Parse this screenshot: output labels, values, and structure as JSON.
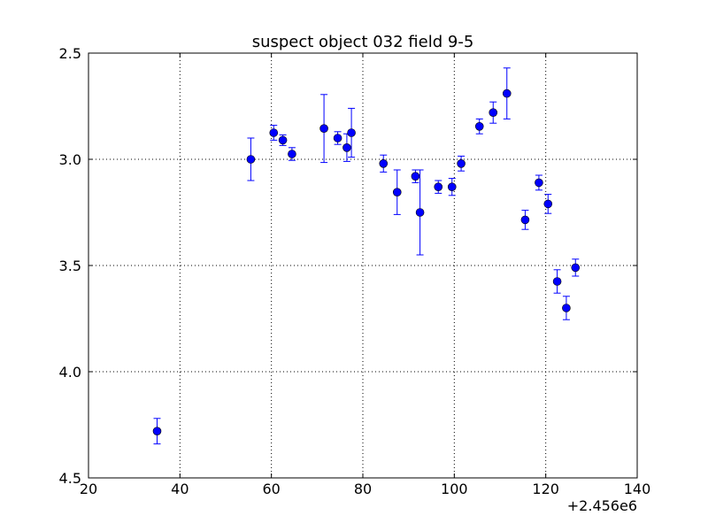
{
  "chart_data": {
    "type": "scatter",
    "title": "suspect object 032 field 9-5",
    "xlabel": "",
    "ylabel": "",
    "xlim": [
      20,
      140
    ],
    "ylim": [
      4.5,
      2.5
    ],
    "y_inverted": true,
    "x_offset_text": "+2.456e6",
    "x_ticks": [
      20,
      40,
      60,
      80,
      100,
      120,
      140
    ],
    "x_tick_labels": [
      "20",
      "40",
      "60",
      "80",
      "100",
      "120",
      "140"
    ],
    "y_ticks": [
      2.5,
      3.0,
      3.5,
      4.0,
      4.5
    ],
    "y_tick_labels": [
      "2.5",
      "3.0",
      "3.5",
      "4.0",
      "4.5"
    ],
    "grid": true,
    "legend": "none",
    "marker_color": "#0000ff",
    "errorbar_color": "#0000ff",
    "points": [
      {
        "x": 35,
        "y": 4.28,
        "err": 0.06
      },
      {
        "x": 55.5,
        "y": 3.0,
        "err": 0.1
      },
      {
        "x": 60.5,
        "y": 2.875,
        "err": 0.035
      },
      {
        "x": 62.5,
        "y": 2.91,
        "err": 0.025
      },
      {
        "x": 64.5,
        "y": 2.975,
        "err": 0.03
      },
      {
        "x": 71.5,
        "y": 2.855,
        "err": 0.16
      },
      {
        "x": 74.5,
        "y": 2.9,
        "err": 0.03
      },
      {
        "x": 76.5,
        "y": 2.945,
        "err": 0.065
      },
      {
        "x": 77.5,
        "y": 2.875,
        "err": 0.115
      },
      {
        "x": 84.5,
        "y": 3.02,
        "err": 0.04
      },
      {
        "x": 87.5,
        "y": 3.155,
        "err": 0.105
      },
      {
        "x": 91.5,
        "y": 3.08,
        "err": 0.03
      },
      {
        "x": 92.5,
        "y": 3.25,
        "err": 0.2
      },
      {
        "x": 96.5,
        "y": 3.13,
        "err": 0.03
      },
      {
        "x": 99.5,
        "y": 3.13,
        "err": 0.04
      },
      {
        "x": 101.5,
        "y": 3.02,
        "err": 0.035
      },
      {
        "x": 105.5,
        "y": 2.845,
        "err": 0.035
      },
      {
        "x": 108.5,
        "y": 2.78,
        "err": 0.05
      },
      {
        "x": 111.5,
        "y": 2.69,
        "err": 0.12
      },
      {
        "x": 115.5,
        "y": 3.285,
        "err": 0.045
      },
      {
        "x": 118.5,
        "y": 3.11,
        "err": 0.035
      },
      {
        "x": 120.5,
        "y": 3.21,
        "err": 0.045
      },
      {
        "x": 122.5,
        "y": 3.575,
        "err": 0.055
      },
      {
        "x": 124.5,
        "y": 3.7,
        "err": 0.055
      },
      {
        "x": 126.5,
        "y": 3.51,
        "err": 0.04
      }
    ]
  }
}
